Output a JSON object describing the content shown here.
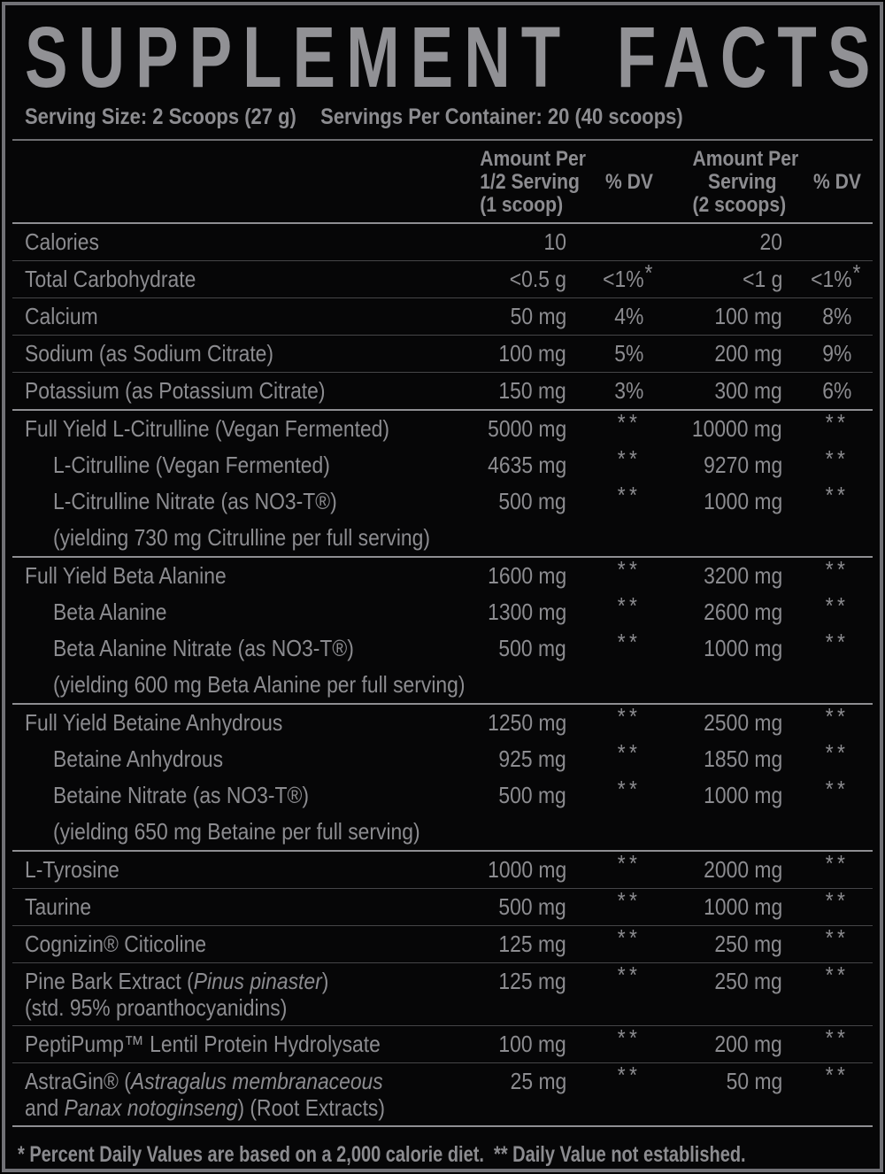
{
  "label": {
    "title": "SUPPLEMENT FACTS",
    "serving_size": "Serving Size: 2 Scoops (27 g)",
    "servings_per_container": "Servings Per Container: 20 (40 scoops)",
    "footnote": "* Percent Daily Values are based on a 2,000 calorie diet.  ** Daily Value not established."
  },
  "colors": {
    "background": "#060607",
    "text": "#8c8c90",
    "border_frame": "#717176",
    "divider_dim": "#454548",
    "divider_bright": "#8e8e92"
  },
  "table": {
    "columns": [
      {
        "id": "amount-half-serving",
        "lines": [
          "Amount Per",
          "1/2 Serving",
          "(1 scoop)"
        ]
      },
      {
        "id": "dv-half-serving",
        "lines": [
          "% DV"
        ]
      },
      {
        "id": "amount-full-serving",
        "lines": [
          "Amount Per",
          "Serving",
          "(2 scoops)"
        ]
      },
      {
        "id": "dv-full-serving",
        "lines": [
          "% DV"
        ]
      }
    ],
    "rows": [
      {
        "n": [
          [
            {
              "t": "Calories"
            }
          ]
        ],
        "a1": "10",
        "d1": "",
        "a2": "20",
        "d2": "",
        "sep": "thin"
      },
      {
        "n": [
          [
            {
              "t": "Total Carbohydrate"
            }
          ]
        ],
        "a1": "<0.5 g",
        "d1": "<1%*",
        "a2": "<1 g",
        "d2": "<1%*",
        "sep": "thin"
      },
      {
        "n": [
          [
            {
              "t": "Calcium"
            }
          ]
        ],
        "a1": "50 mg",
        "d1": "4%",
        "a2": "100 mg",
        "d2": "8%",
        "sep": "thin"
      },
      {
        "n": [
          [
            {
              "t": "Sodium (as Sodium Citrate)"
            }
          ]
        ],
        "a1": "100 mg",
        "d1": "5%",
        "a2": "200 mg",
        "d2": "9%",
        "sep": "thin"
      },
      {
        "n": [
          [
            {
              "t": "Potassium (as Potassium Citrate)"
            }
          ]
        ],
        "a1": "150 mg",
        "d1": "3%",
        "a2": "300 mg",
        "d2": "6%",
        "sep": "thick"
      },
      {
        "n": [
          [
            {
              "t": "Full Yield L-Citrulline (Vegan Fermented)"
            }
          ]
        ],
        "a1": "5000 mg",
        "d1": "**",
        "a2": "10000 mg",
        "d2": "**",
        "sep": "none"
      },
      {
        "n": [
          [
            {
              "t": "L-Citrulline (Vegan Fermented)"
            }
          ]
        ],
        "ind": true,
        "a1": "4635 mg",
        "d1": "**",
        "a2": "9270 mg",
        "d2": "**",
        "sep": "none"
      },
      {
        "n": [
          [
            {
              "t": "L-Citrulline Nitrate (as NO3-T®)"
            }
          ]
        ],
        "ind": true,
        "a1": "500 mg",
        "d1": "**",
        "a2": "1000 mg",
        "d2": "**",
        "sep": "none"
      },
      {
        "n": [
          [
            {
              "t": "(yielding 730 mg Citrulline per full serving)"
            }
          ]
        ],
        "ind": true,
        "a1": "",
        "d1": "",
        "a2": "",
        "d2": "",
        "sep": "thick"
      },
      {
        "n": [
          [
            {
              "t": "Full Yield Beta Alanine"
            }
          ]
        ],
        "a1": "1600 mg",
        "d1": "**",
        "a2": "3200 mg",
        "d2": "**",
        "sep": "none"
      },
      {
        "n": [
          [
            {
              "t": "Beta Alanine"
            }
          ]
        ],
        "ind": true,
        "a1": "1300 mg",
        "d1": "**",
        "a2": "2600 mg",
        "d2": "**",
        "sep": "none"
      },
      {
        "n": [
          [
            {
              "t": "Beta Alanine Nitrate (as NO3-T®)"
            }
          ]
        ],
        "ind": true,
        "a1": "500 mg",
        "d1": "**",
        "a2": "1000 mg",
        "d2": "**",
        "sep": "none"
      },
      {
        "n": [
          [
            {
              "t": "(yielding 600 mg Beta Alanine per full serving)"
            }
          ]
        ],
        "ind": true,
        "a1": "",
        "d1": "",
        "a2": "",
        "d2": "",
        "sep": "thick"
      },
      {
        "n": [
          [
            {
              "t": "Full Yield Betaine Anhydrous"
            }
          ]
        ],
        "a1": "1250 mg",
        "d1": "**",
        "a2": "2500 mg",
        "d2": "**",
        "sep": "none"
      },
      {
        "n": [
          [
            {
              "t": "Betaine Anhydrous"
            }
          ]
        ],
        "ind": true,
        "a1": "925 mg",
        "d1": "**",
        "a2": "1850 mg",
        "d2": "**",
        "sep": "none"
      },
      {
        "n": [
          [
            {
              "t": "Betaine Nitrate (as NO3-T®)"
            }
          ]
        ],
        "ind": true,
        "a1": "500 mg",
        "d1": "**",
        "a2": "1000 mg",
        "d2": "**",
        "sep": "none"
      },
      {
        "n": [
          [
            {
              "t": "(yielding 650 mg Betaine per full serving)"
            }
          ]
        ],
        "ind": true,
        "a1": "",
        "d1": "",
        "a2": "",
        "d2": "",
        "sep": "thick"
      },
      {
        "n": [
          [
            {
              "t": "L-Tyrosine"
            }
          ]
        ],
        "a1": "1000 mg",
        "d1": "**",
        "a2": "2000 mg",
        "d2": "**",
        "sep": "thin"
      },
      {
        "n": [
          [
            {
              "t": "Taurine"
            }
          ]
        ],
        "a1": "500 mg",
        "d1": "**",
        "a2": "1000 mg",
        "d2": "**",
        "sep": "thin"
      },
      {
        "n": [
          [
            {
              "t": "Cognizin® Citicoline"
            }
          ]
        ],
        "a1": "125 mg",
        "d1": "**",
        "a2": "250 mg",
        "d2": "**",
        "sep": "thin"
      },
      {
        "n": [
          [
            {
              "t": "Pine Bark Extract ("
            },
            {
              "t": "Pinus pinaster",
              "i": true
            },
            {
              "t": ")"
            }
          ],
          [
            {
              "t": "(std. 95% proanthocyanidins)"
            }
          ]
        ],
        "a1": "125 mg",
        "d1": "**",
        "a2": "250 mg",
        "d2": "**",
        "sep": "thin"
      },
      {
        "n": [
          [
            {
              "t": "PeptiPump™ Lentil Protein Hydrolysate"
            }
          ]
        ],
        "a1": "100 mg",
        "d1": "**",
        "a2": "200 mg",
        "d2": "**",
        "sep": "thin"
      },
      {
        "n": [
          [
            {
              "t": "AstraGin® ("
            },
            {
              "t": "Astragalus membranaceous",
              "i": true
            }
          ],
          [
            {
              "t": "and "
            },
            {
              "t": "Panax notoginseng",
              "i": true
            },
            {
              "t": ") (Root Extracts)"
            }
          ]
        ],
        "a1": "25 mg",
        "d1": "**",
        "a2": "50 mg",
        "d2": "**",
        "sep": "thick"
      }
    ]
  }
}
